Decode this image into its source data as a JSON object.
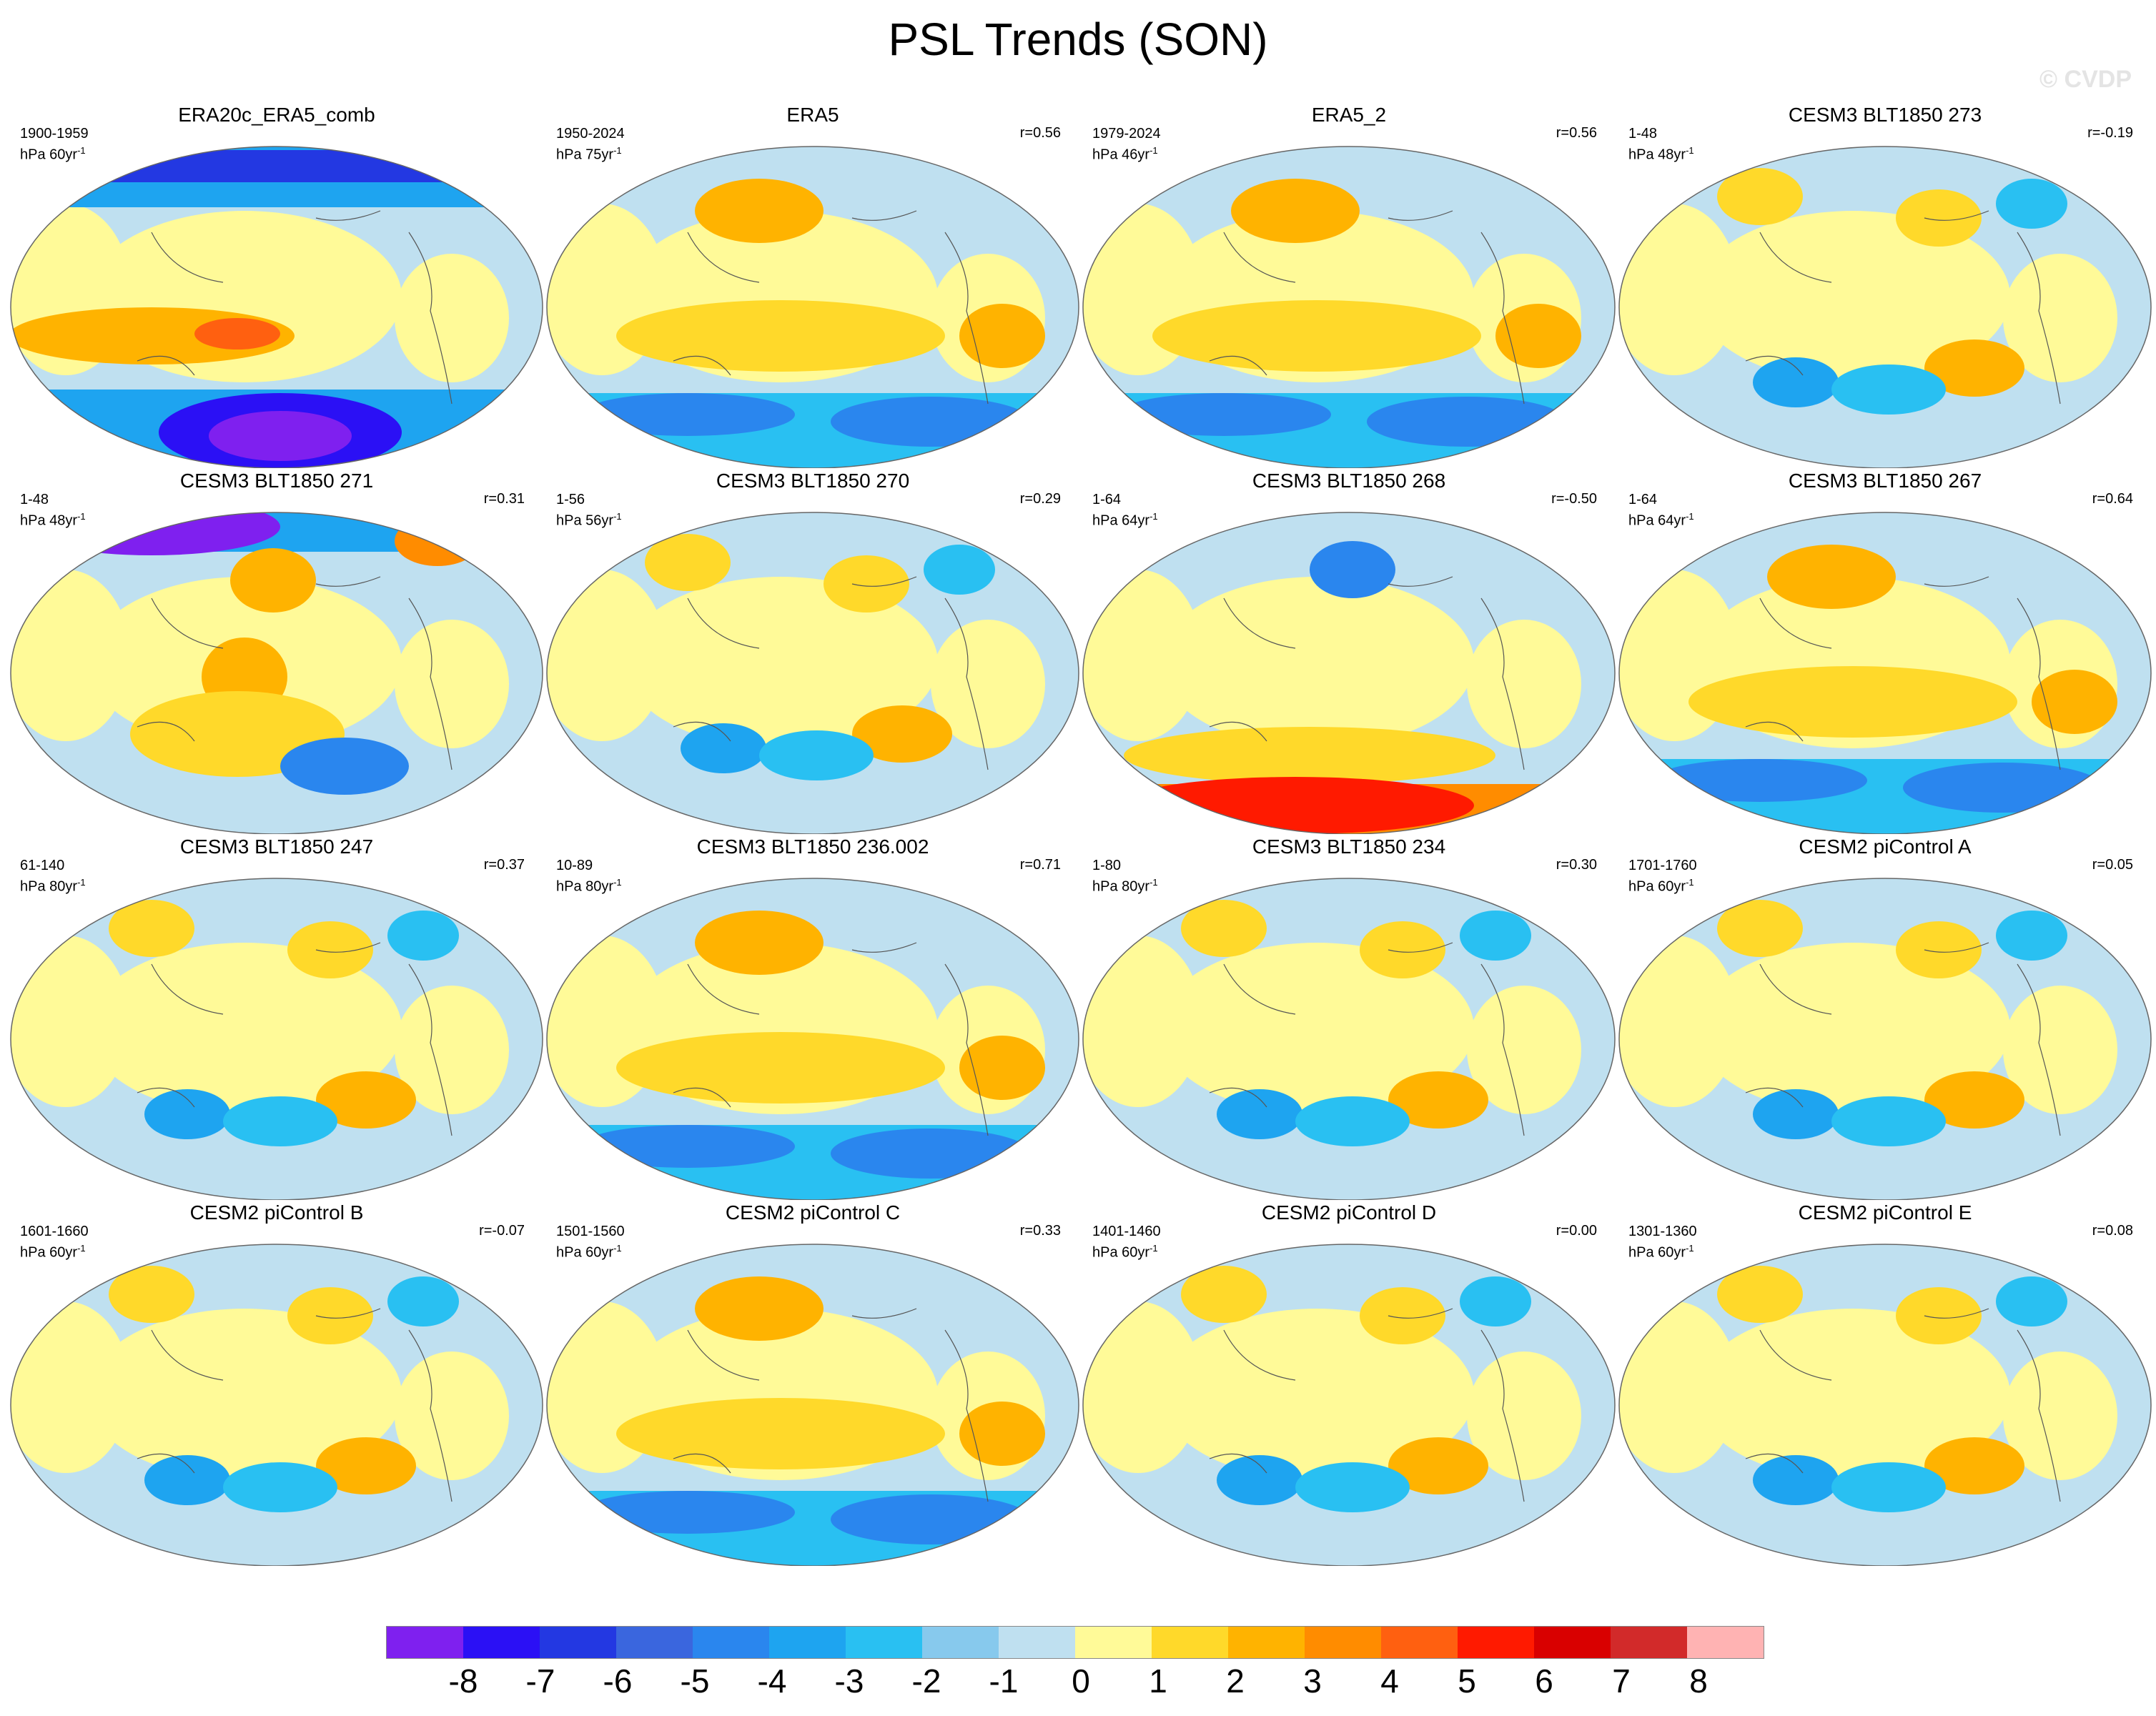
{
  "title": "PSL Trends (SON)",
  "watermark": "© CVDP",
  "panels": [
    {
      "title": "ERA20c_ERA5_comb",
      "period": "1900-1959",
      "units": "hPa 60yr",
      "corr": "",
      "regime": "strong"
    },
    {
      "title": "ERA5",
      "period": "1950-2024",
      "units": "hPa 75yr",
      "corr": "r=0.56",
      "regime": "south-neg"
    },
    {
      "title": "ERA5_2",
      "period": "1979-2024",
      "units": "hPa 46yr",
      "corr": "r=0.56",
      "regime": "south-neg"
    },
    {
      "title": "CESM3 BLT1850 273",
      "period": "1-48",
      "units": "hPa 48yr",
      "corr": "r=-0.19",
      "regime": "mixed"
    },
    {
      "title": "CESM3 BLT1850 271",
      "period": "1-48",
      "units": "hPa 48yr",
      "corr": "r=0.31",
      "regime": "north-neg"
    },
    {
      "title": "CESM3 BLT1850 270",
      "period": "1-56",
      "units": "hPa 56yr",
      "corr": "r=0.29",
      "regime": "mixed"
    },
    {
      "title": "CESM3 BLT1850 268",
      "period": "1-64",
      "units": "hPa 64yr",
      "corr": "r=-0.50",
      "regime": "south-pos"
    },
    {
      "title": "CESM3 BLT1850 267",
      "period": "1-64",
      "units": "hPa 64yr",
      "corr": "r=0.64",
      "regime": "south-neg"
    },
    {
      "title": "CESM3 BLT1850 247",
      "period": "61-140",
      "units": "hPa 80yr",
      "corr": "r=0.37",
      "regime": "mixed"
    },
    {
      "title": "CESM3 BLT1850 236.002",
      "period": "10-89",
      "units": "hPa 80yr",
      "corr": "r=0.71",
      "regime": "south-neg"
    },
    {
      "title": "CESM3 BLT1850 234",
      "period": "1-80",
      "units": "hPa 80yr",
      "corr": "r=0.30",
      "regime": "mixed"
    },
    {
      "title": "CESM2 piControl A",
      "period": "1701-1760",
      "units": "hPa 60yr",
      "corr": "r=0.05",
      "regime": "mixed"
    },
    {
      "title": "CESM2 piControl B",
      "period": "1601-1660",
      "units": "hPa 60yr",
      "corr": "r=-0.07",
      "regime": "mixed"
    },
    {
      "title": "CESM2 piControl C",
      "period": "1501-1560",
      "units": "hPa 60yr",
      "corr": "r=0.33",
      "regime": "south-neg"
    },
    {
      "title": "CESM2 piControl D",
      "period": "1401-1460",
      "units": "hPa 60yr",
      "corr": "r=0.00",
      "regime": "mixed"
    },
    {
      "title": "CESM2 piControl E",
      "period": "1301-1360",
      "units": "hPa 60yr",
      "corr": "r=0.08",
      "regime": "mixed"
    }
  ],
  "colorbar": {
    "colors": [
      "#7f20ef",
      "#2b10f5",
      "#2338e2",
      "#3a66de",
      "#2a86ee",
      "#1ea4f0",
      "#29c0f2",
      "#87c9ed",
      "#bfe0f0",
      "#fffa98",
      "#ffd92a",
      "#ffb300",
      "#ff8c00",
      "#ff6010",
      "#ff1a00",
      "#d90000",
      "#d22a2a",
      "#ffb3b3"
    ],
    "labels": [
      "-8",
      "-7",
      "-6",
      "-5",
      "-4",
      "-3",
      "-2",
      "-1",
      "0",
      "1",
      "2",
      "3",
      "4",
      "5",
      "6",
      "7",
      "8"
    ]
  }
}
